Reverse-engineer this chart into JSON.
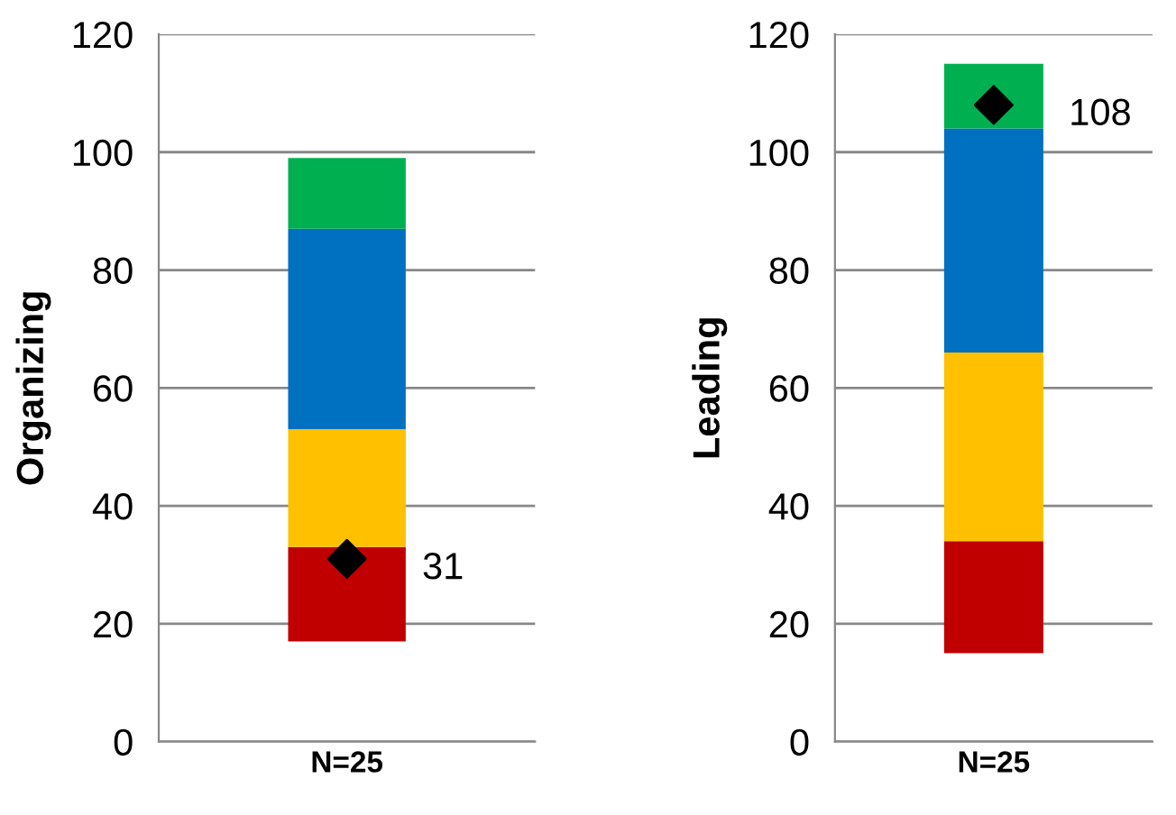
{
  "chart_data": [
    {
      "type": "bar",
      "ylabel": "Organizing",
      "categories": [
        "N=25"
      ],
      "ylim": [
        0,
        120
      ],
      "yticks": [
        0,
        20,
        40,
        60,
        80,
        100,
        120
      ],
      "grid": "y",
      "legend": false,
      "series": [
        {
          "color": "#c00000",
          "base": [
            17
          ],
          "values": [
            16
          ]
        },
        {
          "color": "#ffc000",
          "base": [
            33
          ],
          "values": [
            20
          ]
        },
        {
          "color": "#0070c0",
          "base": [
            53
          ],
          "values": [
            34
          ]
        },
        {
          "color": "#00b050",
          "base": [
            87
          ],
          "values": [
            12
          ]
        },
        {
          "type": "scatter",
          "marker": "diamond",
          "color": "#000000",
          "x": [
            "N=25"
          ],
          "values": [
            31
          ],
          "value_labels": [
            "31"
          ]
        }
      ]
    },
    {
      "type": "bar",
      "ylabel": "Leading",
      "categories": [
        "N=25"
      ],
      "ylim": [
        0,
        120
      ],
      "yticks": [
        0,
        20,
        40,
        60,
        80,
        100,
        120
      ],
      "grid": "y",
      "legend": false,
      "series": [
        {
          "color": "#c00000",
          "base": [
            15
          ],
          "values": [
            19
          ]
        },
        {
          "color": "#ffc000",
          "base": [
            34
          ],
          "values": [
            32
          ]
        },
        {
          "color": "#0070c0",
          "base": [
            66
          ],
          "values": [
            38
          ]
        },
        {
          "color": "#00b050",
          "base": [
            104
          ],
          "values": [
            11
          ]
        },
        {
          "type": "scatter",
          "marker": "diamond",
          "color": "#000000",
          "x": [
            "N=25"
          ],
          "values": [
            108
          ],
          "value_labels": [
            "108"
          ]
        }
      ]
    }
  ]
}
